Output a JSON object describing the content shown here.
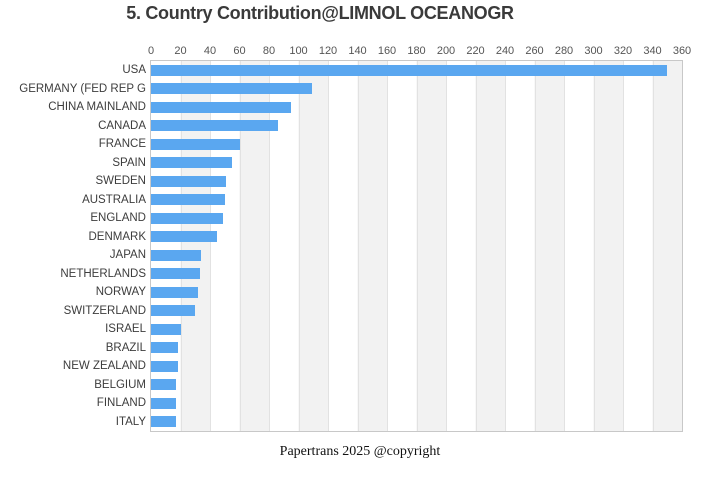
{
  "title": "5. Country Contribution@LIMNOL OCEANOGR",
  "caption": "Papertrans 2025 @copyright",
  "colors": {
    "bar": "#5aa7f0",
    "stripe": "#f2f2f2",
    "grid": "#e2e2e2",
    "border": "#c8c8c8",
    "title_text": "#3a3a3a",
    "axis_text": "#555555",
    "label_text": "#3d3d3d",
    "background": "#ffffff"
  },
  "chart_data": {
    "type": "bar",
    "orientation": "horizontal",
    "title": "5. Country Contribution@LIMNOL OCEANOGR",
    "xlabel": "",
    "ylabel": "",
    "xlim": [
      0,
      360
    ],
    "xticks": [
      0,
      20,
      40,
      60,
      80,
      100,
      120,
      140,
      160,
      180,
      200,
      220,
      240,
      260,
      280,
      300,
      320,
      340,
      360
    ],
    "tick_position": "top",
    "grid": true,
    "legend": false,
    "background_stripes": true,
    "categories": [
      "USA",
      "GERMANY (FED REP G",
      "CHINA MAINLAND",
      "CANADA",
      "FRANCE",
      "SPAIN",
      "SWEDEN",
      "AUSTRALIA",
      "ENGLAND",
      "DENMARK",
      "JAPAN",
      "NETHERLANDS",
      "NORWAY",
      "SWITZERLAND",
      "ISRAEL",
      "BRAZIL",
      "NEW ZEALAND",
      "BELGIUM",
      "FINLAND",
      "ITALY"
    ],
    "values": [
      350,
      109,
      95,
      86,
      60,
      55,
      51,
      50,
      49,
      45,
      34,
      33,
      32,
      30,
      20,
      18,
      18,
      17,
      17,
      17
    ]
  }
}
